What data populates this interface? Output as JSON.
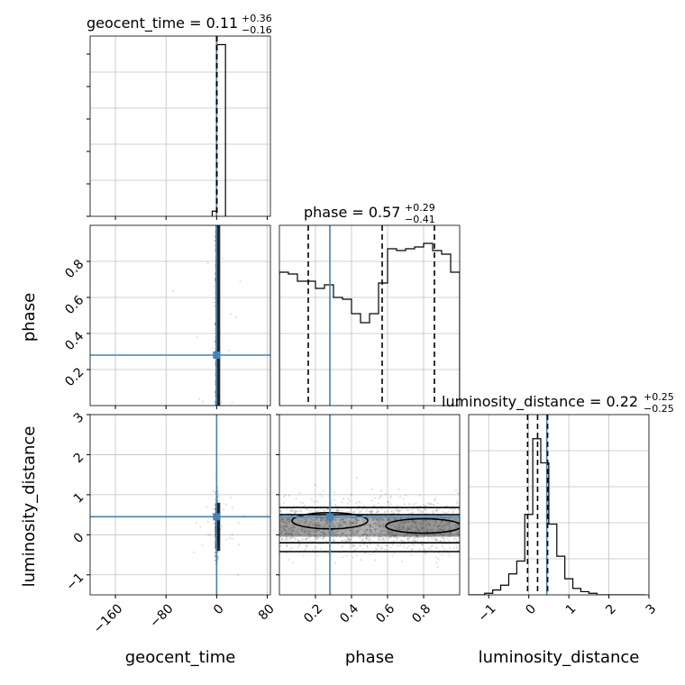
{
  "chart_data": {
    "type": "corner",
    "parameters": [
      {
        "key": "geocent_time",
        "label": "geocent_time",
        "title_main": "geocent_time = 0.11",
        "title_plus": "+0.36",
        "title_minus": "−0.16",
        "range": [
          -200,
          85
        ],
        "ticks": [
          -160,
          -80,
          0,
          80
        ],
        "tick_labels": [
          "−160",
          "−80",
          "0",
          "80"
        ],
        "truth": 0.0,
        "quantiles": [
          -0.05,
          0.11,
          0.47
        ]
      },
      {
        "key": "phase",
        "label": "phase",
        "title_main": "phase = 0.57",
        "title_plus": "+0.29",
        "title_minus": "−0.41",
        "range": [
          0.0,
          1.0
        ],
        "ticks": [
          0.2,
          0.4,
          0.6,
          0.8
        ],
        "tick_labels": [
          "0.2",
          "0.4",
          "0.6",
          "0.8"
        ],
        "truth": 0.28,
        "quantiles": [
          0.16,
          0.57,
          0.86
        ]
      },
      {
        "key": "luminosity_distance",
        "label": "luminosity_distance",
        "title_main": "luminosity_distance = 0.22",
        "title_plus": "+0.25",
        "title_minus": "−0.25",
        "range": [
          -1.5,
          3.0
        ],
        "ticks": [
          -1,
          0,
          1,
          2,
          3
        ],
        "tick_labels": [
          "−1",
          "0",
          "1",
          "2",
          "3"
        ],
        "truth": 0.45,
        "quantiles": [
          -0.03,
          0.22,
          0.47
        ]
      }
    ],
    "histograms": {
      "geocent_time": {
        "bin_edges": [
          -7,
          0,
          7,
          14
        ],
        "counts": [
          0.03,
          1.0,
          1.0
        ],
        "ymax": 1.05
      },
      "phase": {
        "bin_edges": [
          0,
          0.05,
          0.1,
          0.15,
          0.2,
          0.25,
          0.3,
          0.35,
          0.4,
          0.45,
          0.5,
          0.55,
          0.6,
          0.65,
          0.7,
          0.75,
          0.8,
          0.85,
          0.9,
          0.95,
          1.0
        ],
        "counts": [
          0.74,
          0.73,
          0.69,
          0.69,
          0.65,
          0.67,
          0.6,
          0.59,
          0.51,
          0.46,
          0.51,
          0.68,
          0.87,
          0.86,
          0.87,
          0.88,
          0.9,
          0.86,
          0.84,
          0.74
        ],
        "ymax": 1.0
      },
      "luminosity_distance": {
        "bin_edges": [
          -1.5,
          -1.3,
          -1.1,
          -0.9,
          -0.7,
          -0.5,
          -0.3,
          -0.1,
          0.1,
          0.3,
          0.5,
          0.7,
          0.9,
          1.1,
          1.3,
          1.5,
          1.7,
          1.9,
          2.1,
          2.3,
          2.5,
          2.7,
          2.9
        ],
        "counts": [
          0,
          0,
          0.01,
          0.03,
          0.06,
          0.13,
          0.21,
          0.5,
          0.97,
          0.82,
          0.44,
          0.24,
          0.1,
          0.04,
          0.02,
          0.01,
          0,
          0,
          0,
          0,
          0,
          0
        ],
        "ymax": 1.12
      }
    },
    "grid": true
  }
}
